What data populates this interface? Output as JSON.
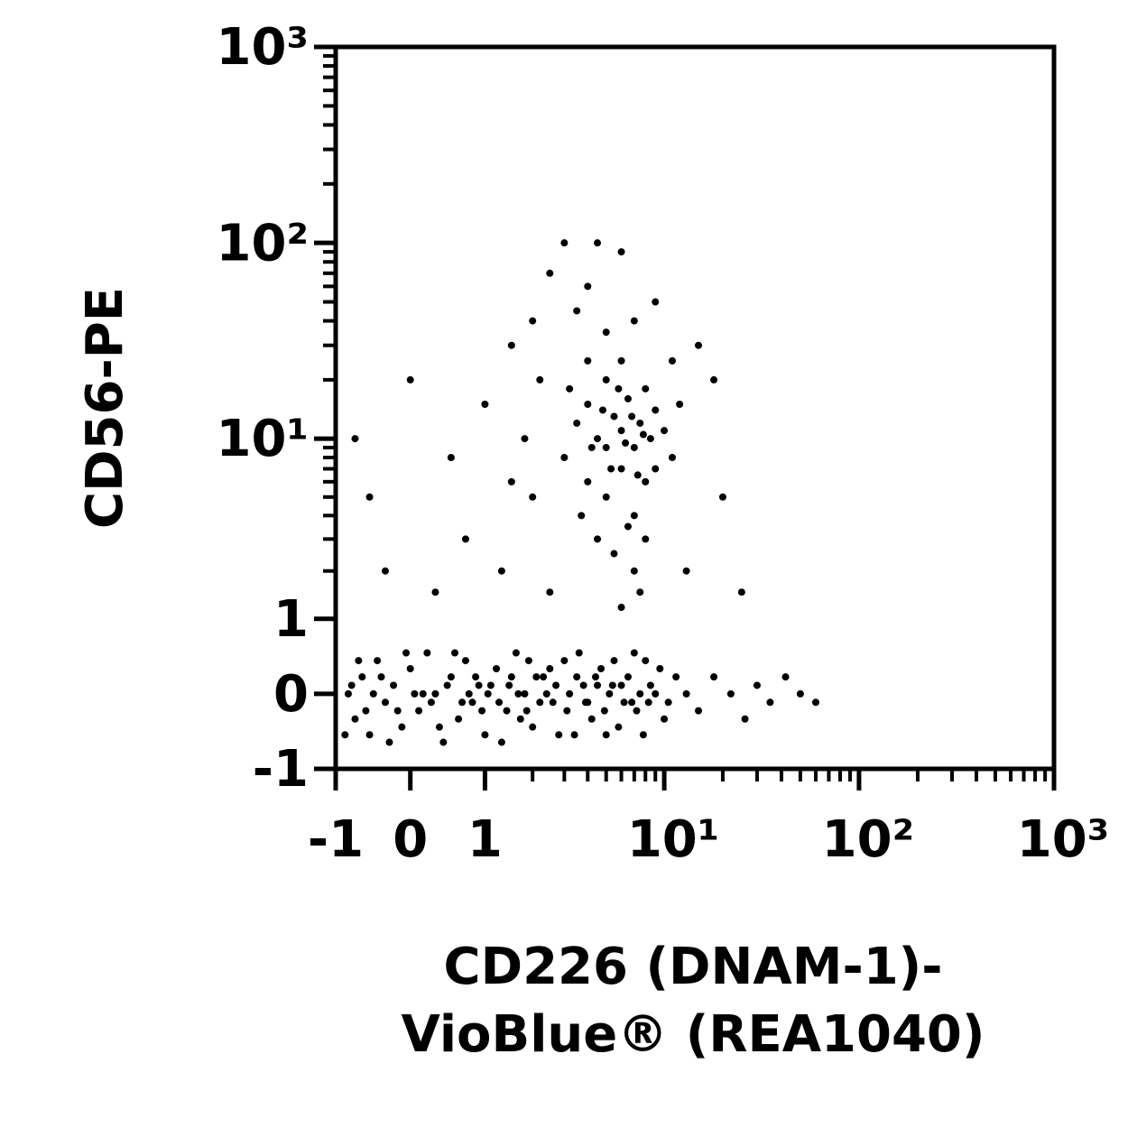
{
  "chart_data": {
    "type": "scatter",
    "xlabel": [
      "CD226 (DNAM-1)-",
      "VioBlue® (REA1040)"
    ],
    "ylabel": "CD56-PE",
    "xscale": "biexponential",
    "yscale": "biexponential",
    "xlim": [
      -1,
      1000
    ],
    "ylim": [
      -1,
      1000
    ],
    "xticks": [
      -1,
      0,
      1,
      {
        "value": 10,
        "label": "10¹"
      },
      {
        "value": 100,
        "label": "10²"
      },
      {
        "value": 1000,
        "label": "10³"
      }
    ],
    "yticks": [
      -1,
      0,
      1,
      {
        "value": 10,
        "label": "10¹"
      },
      {
        "value": 100,
        "label": "10²"
      },
      {
        "value": 1000,
        "label": "10³"
      }
    ],
    "xminorticks": [
      2,
      3,
      4,
      5,
      6,
      7,
      8,
      9,
      20,
      30,
      40,
      50,
      60,
      70,
      80,
      90,
      200,
      300,
      400,
      500,
      600,
      700,
      800,
      900
    ],
    "yminorticks": [
      2,
      3,
      4,
      5,
      6,
      7,
      8,
      9,
      20,
      30,
      40,
      50,
      60,
      70,
      80,
      90,
      200,
      300,
      400,
      500,
      600,
      700,
      800,
      900
    ],
    "color": "#000000",
    "x": [
      -0.8,
      -0.7,
      -0.6,
      -0.5,
      -0.4,
      -0.3,
      -0.2,
      -0.1,
      0,
      0.1,
      0.2,
      0.3,
      0.4,
      0.5,
      0.6,
      0.7,
      0.8,
      0.9,
      1,
      1.2,
      1.4,
      1.6,
      1.8,
      2,
      2.3,
      2.6,
      3,
      3.4,
      3.8,
      4.2,
      4.7,
      5.2,
      5.8,
      6.5,
      7.2,
      8,
      9,
      10,
      11.5,
      13,
      -0.85,
      -0.65,
      -0.45,
      -0.25,
      -0.05,
      0.15,
      0.35,
      0.55,
      0.75,
      0.95,
      1.1,
      1.3,
      1.5,
      1.7,
      1.9,
      2.2,
      2.5,
      2.8,
      3.2,
      3.6,
      4,
      4.5,
      5,
      5.5,
      6.2,
      7,
      7.8,
      8.5,
      9.5,
      10.5,
      -0.75,
      -0.55,
      -0.35,
      -0.15,
      0.05,
      0.25,
      0.45,
      0.65,
      0.85,
      1.05,
      1.25,
      1.45,
      1.65,
      1.85,
      2.1,
      2.4,
      2.7,
      3.1,
      3.5,
      3.9,
      4.4,
      4.9,
      5.4,
      6,
      6.8,
      7.5,
      8.3,
      15,
      18,
      22,
      26,
      30,
      35,
      42,
      50,
      60,
      3,
      3.5,
      4,
      4,
      4.5,
      5,
      5,
      5,
      5.5,
      6,
      6,
      6,
      6.5,
      7,
      7,
      7.5,
      8,
      8,
      8.5,
      9,
      9,
      10,
      4.2,
      4.8,
      5.3,
      5.8,
      6.3,
      6.8,
      7.3,
      7.8,
      3.7,
      4.5,
      5.5,
      6.5,
      7,
      7.5,
      6,
      8,
      11,
      12,
      3.2,
      4,
      5,
      2,
      2.5,
      3,
      4,
      1.5,
      1,
      0.5,
      0,
      -0.5,
      0.7,
      1.3,
      2,
      2.5,
      15,
      18,
      20,
      13,
      25,
      9,
      6,
      3.5,
      1.8,
      2.2,
      -0.3,
      0.3,
      1.5,
      -0.7,
      4.5,
      7,
      11
    ],
    "y": [
      0,
      -0.3,
      0.2,
      -0.5,
      0.4,
      -0.1,
      0.1,
      -0.4,
      0.3,
      -0.2,
      0.5,
      0,
      -0.6,
      0.2,
      -0.3,
      0.4,
      -0.1,
      0.1,
      -0.5,
      0.3,
      -0.2,
      0.5,
      0,
      -0.4,
      0.2,
      -0.1,
      0.4,
      -0.5,
      0.1,
      -0.3,
      0.3,
      0,
      -0.4,
      0.2,
      -0.2,
      0.4,
      0,
      -0.3,
      0.2,
      0,
      -0.5,
      0.4,
      0,
      -0.6,
      0.5,
      0,
      -0.4,
      0.5,
      0,
      -0.2,
      0.1,
      -0.6,
      0.2,
      -0.3,
      0.4,
      -0.1,
      0.3,
      -0.5,
      0,
      0.5,
      -0.1,
      0.1,
      -0.5,
      0.4,
      -0.1,
      0.5,
      -0.5,
      0.1,
      0.3,
      -0.1,
      0.1,
      -0.2,
      0.2,
      -0.2,
      0,
      -0.1,
      0.1,
      -0.1,
      0.2,
      0,
      -0.1,
      0.1,
      0,
      -0.2,
      0.2,
      0,
      0.1,
      -0.2,
      0.2,
      -0.1,
      0.2,
      -0.2,
      0.1,
      0.1,
      -0.1,
      0,
      -0.1,
      -0.2,
      0.2,
      0,
      -0.3,
      0.1,
      -0.1,
      0.2,
      0,
      -0.1,
      8,
      12,
      6,
      15,
      10,
      5,
      20,
      9,
      13,
      7,
      11,
      25,
      16,
      9,
      4,
      12,
      18,
      6,
      10,
      14,
      7,
      11,
      9,
      14,
      7,
      18,
      9.5,
      13,
      6.5,
      10.5,
      4,
      3,
      2.5,
      3.5,
      2,
      1.5,
      1.2,
      3,
      8,
      15,
      18,
      25,
      35,
      40,
      70,
      100,
      60,
      30,
      15,
      8,
      20,
      5,
      3,
      2,
      5,
      1.5,
      30,
      20,
      5,
      2,
      1.5,
      50,
      90,
      45,
      10,
      20,
      2,
      1.5,
      6,
      10,
      100,
      40,
      25
    ]
  }
}
